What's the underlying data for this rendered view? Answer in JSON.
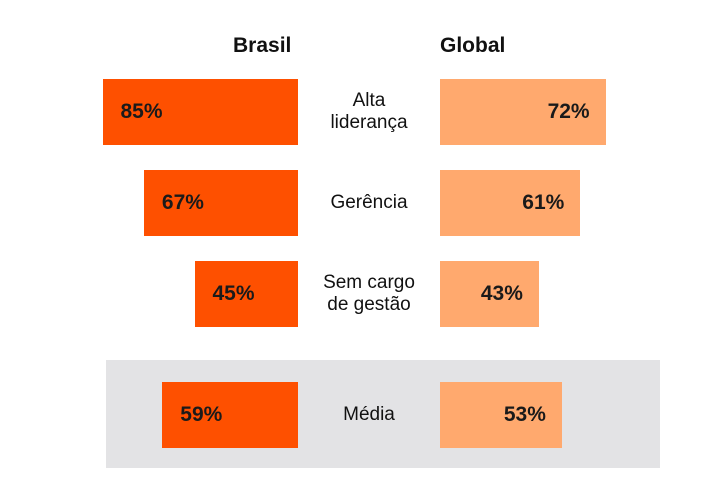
{
  "chart_data": {
    "type": "bar",
    "orientation": "horizontal-diverging",
    "categories": [
      "Alta\nliderança",
      "Gerência",
      "Sem cargo\nde gestão",
      "Média"
    ],
    "series": [
      {
        "name": "Brasil",
        "values": [
          85,
          67,
          45,
          59
        ],
        "labels": [
          "85%",
          "67%",
          "45%",
          "59%"
        ],
        "color": "#fe5000"
      },
      {
        "name": "Global",
        "values": [
          72,
          61,
          43,
          53
        ],
        "labels": [
          "72%",
          "61%",
          "43%",
          "53%"
        ],
        "color": "#ffa96e"
      }
    ],
    "highlight_category": "Média",
    "highlight_color": "#e3e3e5",
    "legend": "top"
  }
}
